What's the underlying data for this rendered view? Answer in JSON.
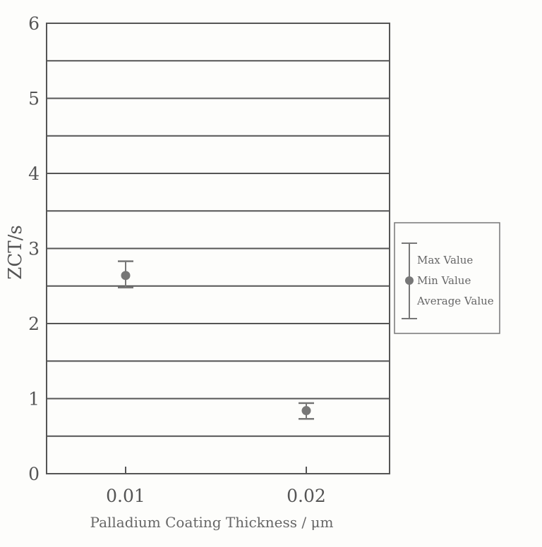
{
  "chart_data": {
    "type": "scatter",
    "title": "",
    "xlabel": "Palladium Coating Thickness / μm",
    "ylabel": "ZCT/s",
    "x_categories": [
      "0.01",
      "0.02"
    ],
    "ylim": [
      0,
      6
    ],
    "yticks": [
      "0",
      "1",
      "2",
      "3",
      "4",
      "5",
      "6"
    ],
    "grid": "horizontal every 0.5",
    "series": [
      {
        "x": "0.01",
        "average": 2.64,
        "max": 2.83,
        "min": 2.48
      },
      {
        "x": "0.02",
        "average": 0.84,
        "max": 0.94,
        "min": 0.73
      }
    ],
    "legend": {
      "placement": "right",
      "entries": [
        "Max Value",
        "Min Value",
        "Average Value"
      ]
    },
    "colors": {
      "marker": "#777777",
      "grid": "#555555"
    }
  }
}
